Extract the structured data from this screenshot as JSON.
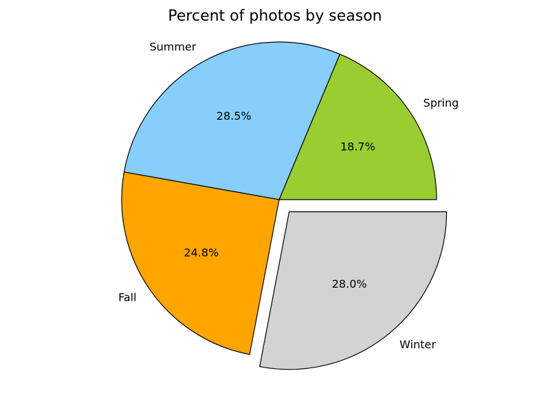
{
  "chart_data": {
    "type": "pie",
    "title": "Percent of photos by season",
    "start_angle_deg": 0,
    "direction": "counterclockwise",
    "slices": [
      {
        "label": "Spring",
        "value": 18.7,
        "pct_label": "18.7%",
        "color": "#9acd32",
        "explode": 0
      },
      {
        "label": "Summer",
        "value": 28.5,
        "pct_label": "28.5%",
        "color": "#87cefa",
        "explode": 0
      },
      {
        "label": "Fall",
        "value": 24.8,
        "pct_label": "24.8%",
        "color": "#ffa500",
        "explode": 0
      },
      {
        "label": "Winter",
        "value": 28.0,
        "pct_label": "28.0%",
        "color": "#d3d3d3",
        "explode": 0.1
      }
    ]
  }
}
